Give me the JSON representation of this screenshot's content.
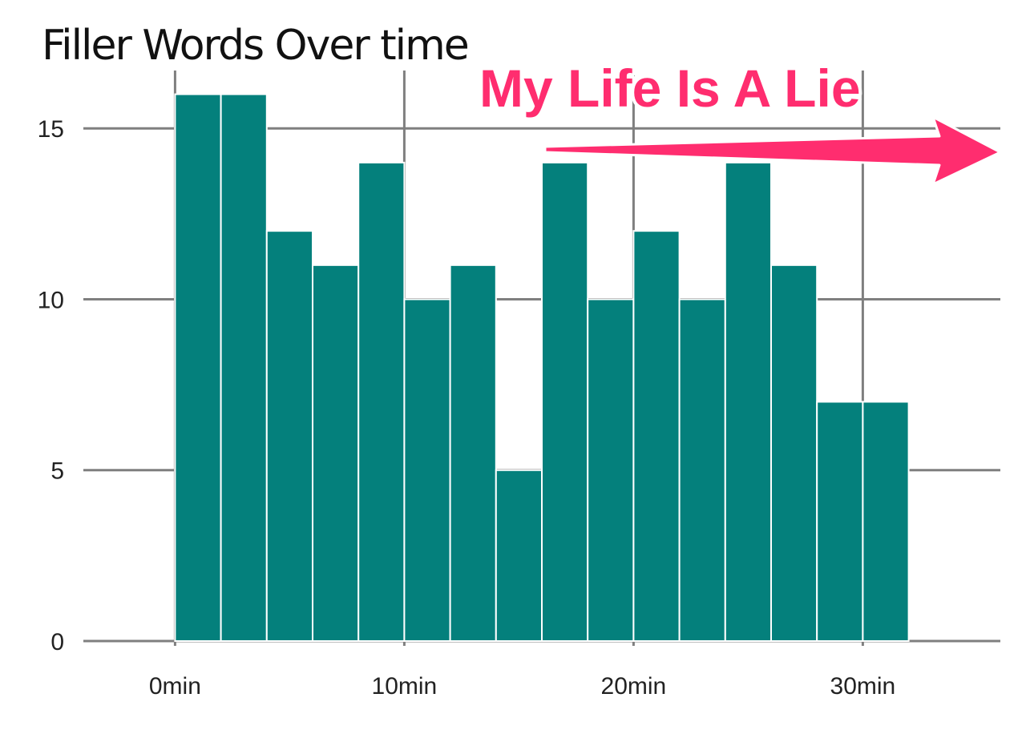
{
  "chart_data": {
    "type": "bar",
    "title": "Filler Words Over time",
    "xlabel": "",
    "ylabel": "",
    "bin_width_min": 2,
    "x_start_min": 0,
    "values": [
      16,
      16,
      12,
      11,
      14,
      10,
      11,
      5,
      14,
      10,
      12,
      10,
      14,
      11,
      7,
      7
    ],
    "xlim": [
      -4,
      36
    ],
    "ylim": [
      0,
      16.6
    ],
    "x_ticks": [
      {
        "value": 0,
        "label": "0min"
      },
      {
        "value": 10,
        "label": "10min"
      },
      {
        "value": 20,
        "label": "20min"
      },
      {
        "value": 30,
        "label": "30min"
      }
    ],
    "y_ticks": [
      {
        "value": 0,
        "label": "0"
      },
      {
        "value": 5,
        "label": "5"
      },
      {
        "value": 10,
        "label": "10"
      },
      {
        "value": 15,
        "label": "15"
      }
    ],
    "grid": true,
    "bar_color": "#04807c",
    "bar_edge_color": "#ffffff",
    "grid_color": "#7f7f7f",
    "annotation": {
      "text": "My Life Is A Lie",
      "color": "#ff2d6f"
    }
  }
}
